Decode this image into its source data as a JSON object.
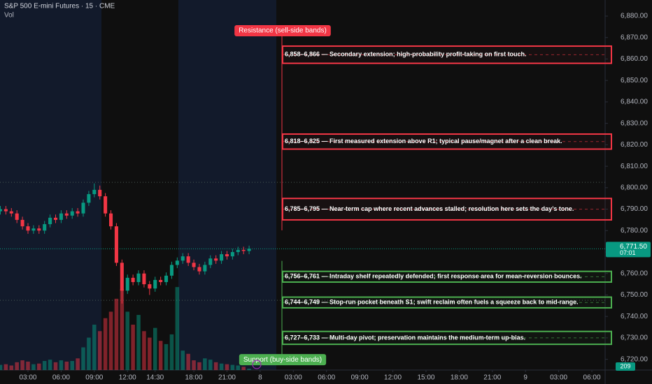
{
  "chart_data": {
    "type": "candlestick",
    "title": "S&P 500 E-mini Futures · 15 · CME",
    "indicator": "Vol",
    "x": [
      0.5,
      1,
      1.5,
      2,
      2.5,
      3,
      3.5,
      4,
      4.5,
      5,
      5.5,
      6,
      6.5,
      7,
      7.5,
      8,
      8.5,
      9,
      9.5,
      10,
      10.5,
      11,
      11.5,
      12,
      12.5,
      13,
      13.5,
      14,
      14.5,
      15,
      15.5,
      16,
      16.5,
      17,
      17.5,
      18,
      18.5,
      19,
      19.5,
      20,
      20.5,
      21,
      21.5,
      22,
      22.5,
      23
    ],
    "open": [
      6789,
      6790,
      6789,
      6788,
      6785,
      6782,
      6780,
      6781,
      6780,
      6783,
      6786,
      6785,
      6788,
      6787,
      6789,
      6788,
      6793,
      6797,
      6799,
      6796,
      6788,
      6782,
      6765,
      6752,
      6758,
      6756,
      6760,
      6755,
      6753,
      6757,
      6756,
      6759,
      6764,
      6766,
      6768,
      6765,
      6763,
      6761,
      6764,
      6767,
      6766,
      6769,
      6768,
      6770,
      6771,
      6770.5
    ],
    "high": [
      6791.5,
      6791.5,
      6790.5,
      6789.5,
      6786.5,
      6783.5,
      6782.5,
      6782.5,
      6784.5,
      6787.5,
      6787.5,
      6789.5,
      6789.5,
      6790.5,
      6790.5,
      6794.5,
      6798.5,
      6802,
      6801,
      6797.5,
      6789.5,
      6783.5,
      6766.5,
      6759.5,
      6759.5,
      6761.5,
      6761.5,
      6756.5,
      6758.5,
      6758.5,
      6760.5,
      6765.5,
      6767.5,
      6769.5,
      6769.5,
      6766.5,
      6764.5,
      6765.5,
      6768.5,
      6768.5,
      6770.5,
      6770.5,
      6771.5,
      6772.5,
      6772.5,
      6773
    ],
    "low": [
      6787.5,
      6787.5,
      6786.5,
      6783.5,
      6780.5,
      6778.5,
      6778.5,
      6778.5,
      6778.5,
      6781.5,
      6783.5,
      6783.5,
      6785.5,
      6785.5,
      6786.5,
      6786.5,
      6791.5,
      6795.5,
      6794.5,
      6786.5,
      6780.5,
      6763.5,
      6746,
      6750.5,
      6754.5,
      6754.5,
      6753.5,
      6750,
      6751.5,
      6754.5,
      6754.5,
      6757.5,
      6762.5,
      6764.5,
      6763.5,
      6761.5,
      6759.5,
      6759.5,
      6762.5,
      6764.5,
      6764.5,
      6766.5,
      6766.5,
      6768.5,
      6769,
      6769
    ],
    "close": [
      6790,
      6789,
      6788,
      6785,
      6782,
      6780,
      6781,
      6780,
      6783,
      6786,
      6785,
      6788,
      6787,
      6789,
      6788,
      6793,
      6797,
      6799,
      6796,
      6788,
      6782,
      6765,
      6752,
      6758,
      6756,
      6760,
      6755,
      6753,
      6757,
      6756,
      6759,
      6764,
      6766,
      6768,
      6765,
      6763,
      6761,
      6764,
      6767,
      6766,
      6769,
      6768,
      6770,
      6771,
      6770.5,
      6771.5
    ],
    "up_color": "#089981",
    "down_color": "#f23645",
    "volume": {
      "values": [
        800,
        900,
        700,
        1200,
        1500,
        1300,
        900,
        1000,
        1400,
        1600,
        1200,
        1500,
        1300,
        1400,
        1800,
        3500,
        5000,
        7000,
        6000,
        8000,
        9000,
        11000,
        12500,
        9000,
        7000,
        8500,
        6000,
        5000,
        6500,
        4500,
        4000,
        5500,
        12800,
        3000,
        2500,
        1500,
        1200,
        1800,
        1600,
        1200,
        1000,
        900,
        800,
        700,
        500,
        209
      ],
      "ylim": [
        0,
        14000
      ]
    },
    "xlim": [
      0.47,
      55.2
    ],
    "xticks": [
      {
        "value": 3,
        "label": "03:00"
      },
      {
        "value": 6,
        "label": "06:00"
      },
      {
        "value": 9,
        "label": "09:00"
      },
      {
        "value": 12,
        "label": "12:00"
      },
      {
        "value": 14.5,
        "label": "14:30"
      },
      {
        "value": 18,
        "label": "18:00"
      },
      {
        "value": 21,
        "label": "21:00"
      },
      {
        "value": 24,
        "label": "8"
      },
      {
        "value": 27,
        "label": "03:00"
      },
      {
        "value": 30,
        "label": "06:00"
      },
      {
        "value": 33,
        "label": "09:00"
      },
      {
        "value": 36,
        "label": "12:00"
      },
      {
        "value": 39,
        "label": "15:00"
      },
      {
        "value": 42,
        "label": "18:00"
      },
      {
        "value": 45,
        "label": "21:00"
      },
      {
        "value": 48,
        "label": "9"
      },
      {
        "value": 51,
        "label": "03:00"
      },
      {
        "value": 54,
        "label": "06:00"
      }
    ],
    "ylim": [
      6715,
      6887.5
    ],
    "yticks": [
      {
        "value": 6880,
        "label": "6,880.00"
      },
      {
        "value": 6870,
        "label": "6,870.00"
      },
      {
        "value": 6860,
        "label": "6,860.00"
      },
      {
        "value": 6850,
        "label": "6,850.00"
      },
      {
        "value": 6840,
        "label": "6,840.00"
      },
      {
        "value": 6830,
        "label": "6,830.00"
      },
      {
        "value": 6820,
        "label": "6,820.00"
      },
      {
        "value": 6810,
        "label": "6,810.00"
      },
      {
        "value": 6800,
        "label": "6,800.00"
      },
      {
        "value": 6790,
        "label": "6,790.00"
      },
      {
        "value": 6780,
        "label": "6,780.00"
      },
      {
        "value": 6770,
        "label": "6,770.00"
      },
      {
        "value": 6760,
        "label": "6,760.00"
      },
      {
        "value": 6750,
        "label": "6,750.00"
      },
      {
        "value": 6740,
        "label": "6,740.00"
      },
      {
        "value": 6730,
        "label": "6,730.00"
      },
      {
        "value": 6720,
        "label": "6,720.00"
      }
    ],
    "last_price": {
      "value": 6771.5,
      "label": "6,771.50"
    },
    "countdown": "07:01",
    "reference_lines": [
      6802.5,
      6747.5
    ],
    "zone_groups": [
      {
        "title": "Resistance (sell-side bands)",
        "color": "#f23645",
        "bands": [
          {
            "low": 6858,
            "high": 6866,
            "label": "6,858–6,866 — Secondary extension; high-probability profit-taking on first touch."
          },
          {
            "low": 6818,
            "high": 6825,
            "label": "6,818–6,825 — First measured extension above R1; typical pause/magnet after a clean break."
          },
          {
            "low": 6785,
            "high": 6795,
            "label": "6,785–6,795 — Near-term cap where recent advances stalled; resolution here sets the day’s tone."
          }
        ]
      },
      {
        "title": "Support (buy-side bands)",
        "color": "#4caf50",
        "bands": [
          {
            "low": 6756,
            "high": 6761,
            "label": "6,756–6,761 — Intraday shelf repeatedly defended; first response area for mean-reversion bounces."
          },
          {
            "low": 6744,
            "high": 6749,
            "label": "6,744–6,749 — Stop-run pocket beneath S1; swift reclaim often fuels a squeeze back to mid-range."
          },
          {
            "low": 6727,
            "high": 6733,
            "label": "6,727–6,733 — Multi-day pivot; preservation maintains the medium-term up-bias."
          }
        ]
      }
    ]
  }
}
